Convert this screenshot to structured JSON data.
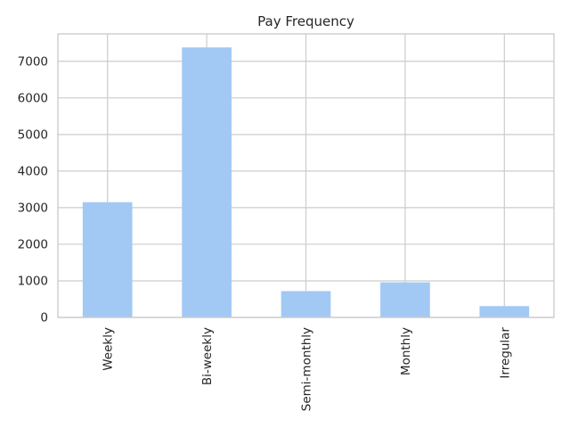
{
  "chart_data": {
    "type": "bar",
    "title": "Pay Frequency",
    "xlabel": "",
    "ylabel": "",
    "categories": [
      "Weekly",
      "Bi-weekly",
      "Semi-monthly",
      "Monthly",
      "Irregular"
    ],
    "values": [
      3150,
      7380,
      720,
      960,
      310
    ],
    "ylim": [
      0,
      7750
    ],
    "yticks": [
      0,
      1000,
      2000,
      3000,
      4000,
      5000,
      6000,
      7000
    ],
    "ytick_labels": [
      "0",
      "1000",
      "2000",
      "3000",
      "4000",
      "5000",
      "6000",
      "7000"
    ],
    "grid": true,
    "bar_color": "#a1c9f4",
    "grid_color": "#cccccc",
    "text_color": "#262626",
    "background": "#ffffff"
  }
}
